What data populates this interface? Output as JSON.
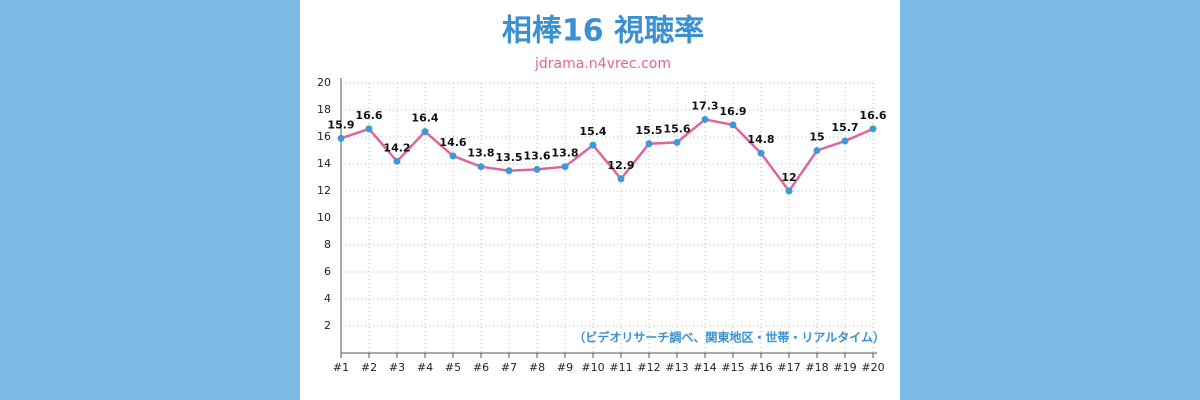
{
  "chart_data": {
    "type": "line",
    "title": "相棒16 視聴率",
    "subtitle": "jdrama.n4vrec.com",
    "annotation": "（ビデオリサーチ調べ、関東地区・世帯・リアルタイム）",
    "categories": [
      "#1",
      "#2",
      "#3",
      "#4",
      "#5",
      "#6",
      "#7",
      "#8",
      "#9",
      "#10",
      "#11",
      "#12",
      "#13",
      "#14",
      "#15",
      "#16",
      "#17",
      "#18",
      "#19",
      "#20"
    ],
    "values": [
      15.9,
      16.6,
      14.2,
      16.4,
      14.6,
      13.8,
      13.5,
      13.6,
      13.8,
      15.4,
      12.9,
      15.5,
      15.6,
      17.3,
      16.9,
      14.8,
      12,
      15,
      15.7,
      16.6
    ],
    "color": "#e2649b",
    "marker_color": "#3b9bd8",
    "ylim": [
      0,
      20
    ],
    "yticks": [
      2,
      4,
      6,
      8,
      10,
      12,
      14,
      16,
      18,
      20
    ],
    "grid": true
  }
}
